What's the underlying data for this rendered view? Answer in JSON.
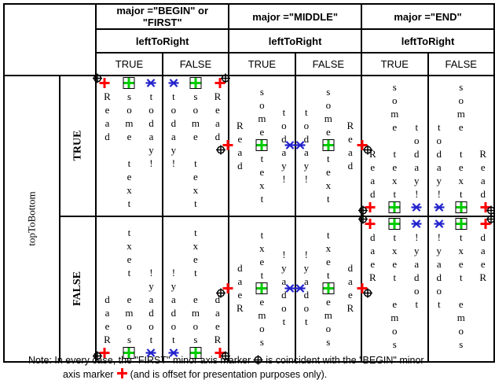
{
  "table": {
    "major_row": [
      "major =\"BEGIN\" or \"FIRST\"",
      "major =\"MIDDLE\"",
      "major =\"END\""
    ],
    "minor_row": [
      "leftToRight",
      "leftToRight",
      "leftToRight"
    ],
    "bool_row": [
      "TRUE",
      "FALSE",
      "TRUE",
      "FALSE",
      "TRUE",
      "FALSE"
    ],
    "left_axis_label": "topToBottom",
    "left_bool_labels": [
      "TRUE",
      "FALSE"
    ]
  },
  "content": {
    "words": [
      {
        "id": "read",
        "text": "Read",
        "markers": [
          "begin",
          "first"
        ]
      },
      {
        "id": "some-text",
        "text": "some text",
        "markers": [
          "middle"
        ]
      },
      {
        "id": "today",
        "text": "today!",
        "markers": [
          "end"
        ]
      }
    ],
    "marker_legend": {
      "begin": {
        "shape": "red-plus",
        "color": "#ff0000"
      },
      "first": {
        "shape": "black-circle-plus",
        "color": "#000000"
      },
      "middle": {
        "shape": "green-square-plus",
        "color": "#00cc00"
      },
      "end": {
        "shape": "blue-asterisk",
        "color": "#2222cc"
      }
    },
    "cells": [
      {
        "major": "BEGIN/FIRST",
        "leftToRight": "TRUE",
        "topToBottom": "TRUE"
      },
      {
        "major": "BEGIN/FIRST",
        "leftToRight": "FALSE",
        "topToBottom": "TRUE"
      },
      {
        "major": "MIDDLE",
        "leftToRight": "TRUE",
        "topToBottom": "TRUE"
      },
      {
        "major": "MIDDLE",
        "leftToRight": "FALSE",
        "topToBottom": "TRUE"
      },
      {
        "major": "END",
        "leftToRight": "TRUE",
        "topToBottom": "TRUE"
      },
      {
        "major": "END",
        "leftToRight": "FALSE",
        "topToBottom": "TRUE"
      },
      {
        "major": "BEGIN/FIRST",
        "leftToRight": "TRUE",
        "topToBottom": "FALSE"
      },
      {
        "major": "BEGIN/FIRST",
        "leftToRight": "FALSE",
        "topToBottom": "FALSE"
      },
      {
        "major": "MIDDLE",
        "leftToRight": "TRUE",
        "topToBottom": "FALSE"
      },
      {
        "major": "MIDDLE",
        "leftToRight": "FALSE",
        "topToBottom": "FALSE"
      },
      {
        "major": "END",
        "leftToRight": "TRUE",
        "topToBottom": "FALSE"
      },
      {
        "major": "END",
        "leftToRight": "FALSE",
        "topToBottom": "FALSE"
      }
    ]
  },
  "note": {
    "l1a": "Note: In every case, the \"FIRST\" minor axis marker",
    "l1b": "is coincident with the \"BEGIN\" minor",
    "l2a": "axis marker",
    "l2b": "(and is offset for presentation purposes only)."
  }
}
